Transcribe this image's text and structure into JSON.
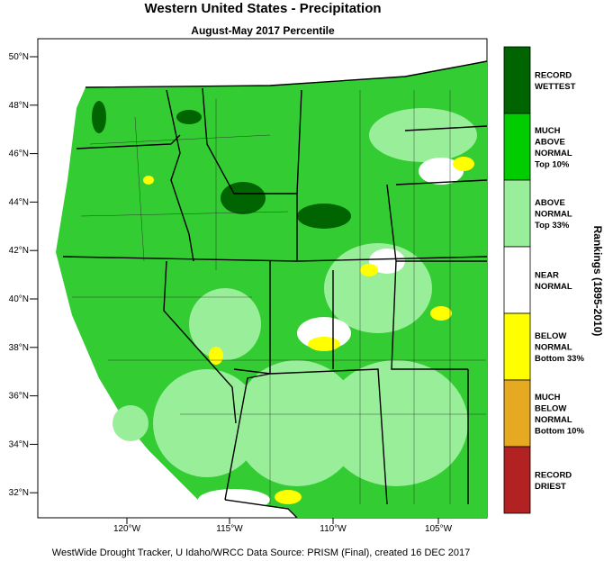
{
  "title": "Western United States - Precipitation",
  "subtitle": "August-May 2017 Percentile",
  "lat_labels": [
    "50°N",
    "48°N",
    "46°N",
    "44°N",
    "42°N",
    "40°N",
    "38°N",
    "36°N",
    "34°N",
    "32°N"
  ],
  "lon_labels": [
    "120°W",
    "115°W",
    "110°W",
    "105°W"
  ],
  "legend": {
    "title": "Rankings (1895-2010)",
    "items": [
      {
        "lines": [
          "RECORD",
          "WETTEST"
        ],
        "color": "#006400"
      },
      {
        "lines": [
          "MUCH",
          "ABOVE",
          "NORMAL",
          "Top 10%"
        ],
        "color": "#00cc00"
      },
      {
        "lines": [
          "ABOVE",
          "NORMAL",
          "Top 33%"
        ],
        "color": "#99ee99"
      },
      {
        "lines": [
          "NEAR",
          "NORMAL"
        ],
        "color": "#ffffff"
      },
      {
        "lines": [
          "BELOW",
          "NORMAL",
          "Bottom 33%"
        ],
        "color": "#ffff00"
      },
      {
        "lines": [
          "MUCH",
          "BELOW",
          "NORMAL",
          "Bottom 10%"
        ],
        "color": "#e6aa22"
      },
      {
        "lines": [
          "RECORD",
          "DRIEST"
        ],
        "color": "#b22222"
      }
    ]
  },
  "footer": "WestWide Drought Tracker, U Idaho/WRCC Data Source: PRISM (Final), created 16 DEC 2017"
}
